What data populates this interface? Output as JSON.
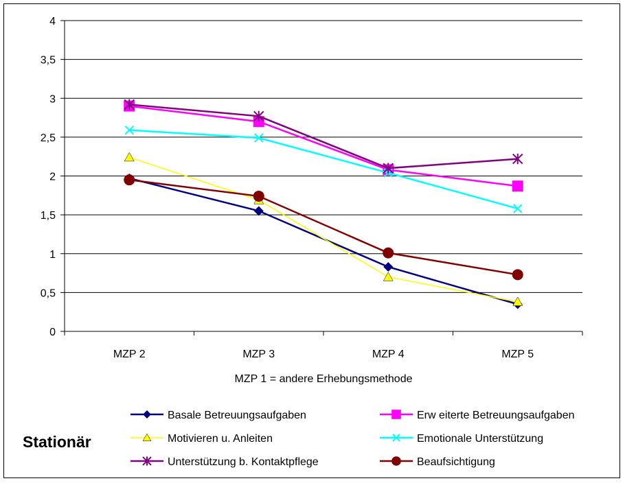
{
  "chart_data": {
    "type": "line",
    "categories": [
      "MZP 2",
      "MZP 3",
      "MZP 4",
      "MZP 5"
    ],
    "xlabel": "MZP 1 = andere Erhebungsmethode",
    "ylabel": "",
    "ylim": [
      0,
      4
    ],
    "yticks": [
      "0",
      "0,5",
      "1",
      "1,5",
      "2",
      "2,5",
      "3",
      "3,5",
      "4"
    ],
    "grid": true,
    "legend_position": "bottom",
    "side_label": "Stationär",
    "series": [
      {
        "name": "Basale Betreuungsaufgaben",
        "values": [
          1.97,
          1.55,
          0.83,
          0.35
        ],
        "color": "#000080",
        "marker": "diamond"
      },
      {
        "name": "Erw eiterte Betreuungsaufgaben",
        "values": [
          2.9,
          2.7,
          2.08,
          1.87
        ],
        "color": "#ff00ff",
        "marker": "square"
      },
      {
        "name": "Motivieren u. Anleiten",
        "values": [
          2.24,
          1.69,
          0.7,
          0.38
        ],
        "color": "#ffff00",
        "marker": "triangle"
      },
      {
        "name": "Emotionale Unterstützung",
        "values": [
          2.59,
          2.49,
          2.04,
          1.58
        ],
        "color": "#00ffff",
        "marker": "x"
      },
      {
        "name": "Unterstützung b. Kontaktpflege",
        "values": [
          2.92,
          2.77,
          2.1,
          2.22
        ],
        "color": "#800080",
        "marker": "star"
      },
      {
        "name": "Beaufsichtigung",
        "values": [
          1.95,
          1.74,
          1.01,
          0.73
        ],
        "color": "#800000",
        "marker": "circle"
      }
    ]
  }
}
